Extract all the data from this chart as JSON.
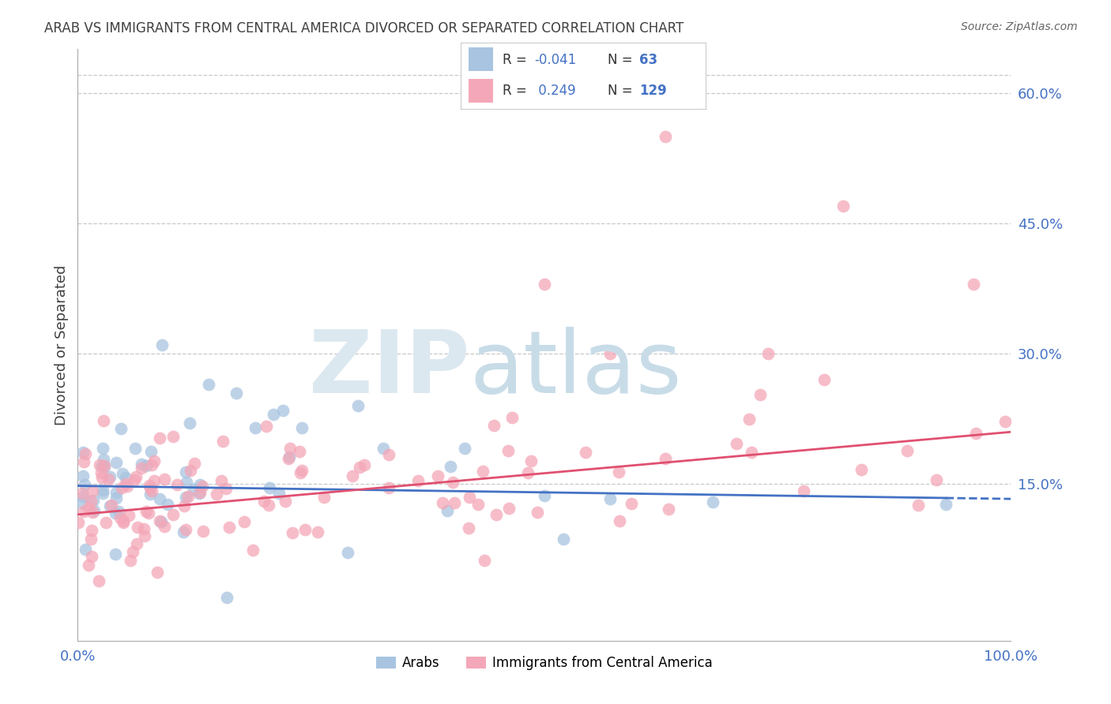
{
  "title": "ARAB VS IMMIGRANTS FROM CENTRAL AMERICA DIVORCED OR SEPARATED CORRELATION CHART",
  "source": "Source: ZipAtlas.com",
  "ylabel": "Divorced or Separated",
  "color_arab": "#a8c4e0",
  "color_immigrant": "#f4a7b8",
  "color_arab_line": "#4472c4",
  "color_immigrant_line": "#e05070",
  "color_axis_labels": "#4472c4",
  "xlim": [
    0.0,
    1.0
  ],
  "ylim": [
    -0.03,
    0.65
  ],
  "yticks": [
    0.15,
    0.3,
    0.45,
    0.6
  ],
  "ytick_labels": [
    "15.0%",
    "30.0%",
    "45.0%",
    "60.0%"
  ],
  "legend_r1": "R = -0.041",
  "legend_n1": "N =  63",
  "legend_r2": "R =  0.249",
  "legend_n2": "N = 129",
  "arab_line": [
    0.148,
    0.133
  ],
  "immigrant_line": [
    0.115,
    0.21
  ]
}
